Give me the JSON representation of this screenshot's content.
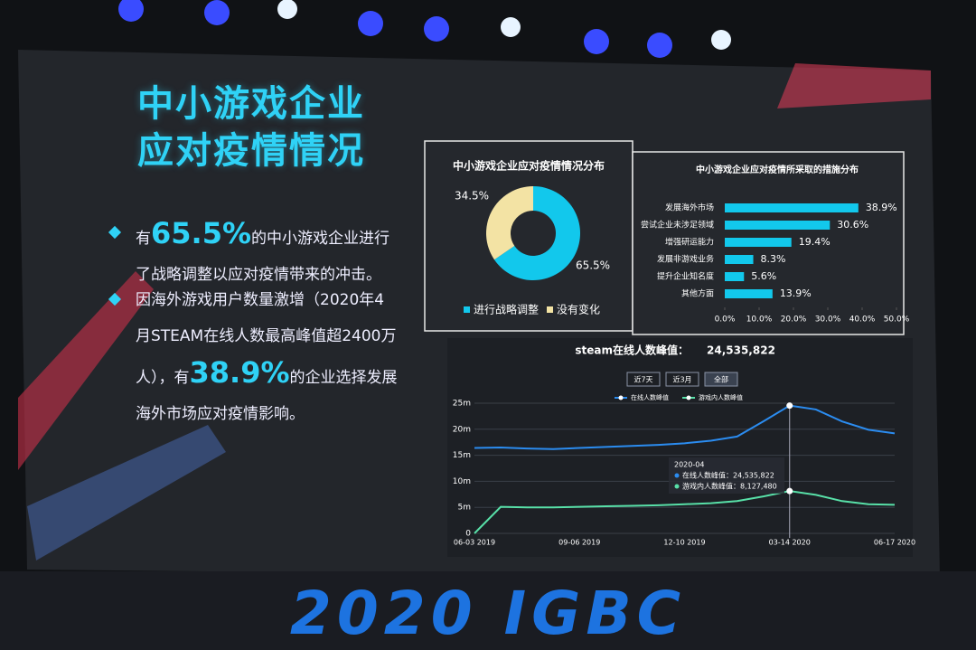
{
  "slide_title": [
    "中小游戏企业",
    "应对疫情情况"
  ],
  "bullets": [
    {
      "before": "有",
      "highlight": "65.5%",
      "after": "的中小游戏企业进行了战略调整以应对疫情带来的冲击。"
    },
    {
      "before": "因海外游戏用户数量激增（2020年4月STEAM在线人数最高峰值超2400万人），有",
      "highlight": "38.9%",
      "after": "的企业选择发展海外市场应对疫情影响。"
    }
  ],
  "banner": "2020 IGBC",
  "chart_data": [
    {
      "type": "pie",
      "title": "中小游戏企业应对疫情情况分布",
      "categories": [
        "进行战略调整",
        "没有变化"
      ],
      "values": [
        65.5,
        34.5
      ],
      "value_labels": [
        "65.5%",
        "34.5%"
      ],
      "colors": [
        "#12c8ec",
        "#f3e3a4"
      ]
    },
    {
      "type": "hbar",
      "title": "中小游戏企业应对疫情所采取的措施分布",
      "categories": [
        "发展海外市场",
        "尝试企业未涉足领域",
        "增强研运能力",
        "发展非游戏业务",
        "提升企业知名度",
        "其他方面"
      ],
      "values": [
        38.9,
        30.6,
        19.4,
        8.3,
        5.6,
        13.9
      ],
      "value_labels": [
        "38.9%",
        "30.6%",
        "19.4%",
        "8.3%",
        "5.6%",
        "13.9%"
      ],
      "color": "#12c8ec",
      "xlim": [
        0,
        50
      ],
      "xticks": [
        {
          "value": 0,
          "label": "0.0%"
        },
        {
          "value": 10,
          "label": "10.0%"
        },
        {
          "value": 20,
          "label": "20.0%"
        },
        {
          "value": 30,
          "label": "30.0%"
        },
        {
          "value": 40,
          "label": "40.0%"
        },
        {
          "value": 50,
          "label": "50.0%"
        }
      ]
    },
    {
      "type": "line",
      "title": "steam在线人数峰值：",
      "annotation": "24,535,822",
      "buttons": [
        "近7天",
        "近3月",
        "全部"
      ],
      "categories": [
        "06-03 2019",
        null,
        null,
        null,
        "09-06 2019",
        null,
        null,
        null,
        "12-10 2019",
        null,
        null,
        null,
        "03-14 2020",
        null,
        null,
        null,
        "06-17 2020"
      ],
      "series": [
        {
          "name": "在线人数峰值",
          "color": "#2b8cf0",
          "values": [
            16400000,
            16500000,
            16300000,
            16200000,
            16400000,
            16600000,
            16800000,
            17000000,
            17300000,
            17800000,
            18600000,
            21500000,
            24535822,
            23800000,
            21500000,
            19900000,
            19200000
          ]
        },
        {
          "name": "游戏内人数峰值",
          "color": "#58e0a8",
          "values": [
            0,
            5100000,
            5000000,
            5000000,
            5100000,
            5200000,
            5300000,
            5400000,
            5600000,
            5800000,
            6200000,
            7100000,
            8127480,
            7400000,
            6200000,
            5600000,
            5500000
          ]
        }
      ],
      "tooltip": {
        "title": "2020-04",
        "lines": [
          "在线人数峰值：24,535,822",
          "游戏内人数峰值：8,127,480"
        ]
      },
      "ylim": [
        0,
        25000000
      ],
      "yticks": [
        0,
        {
          "value": 5000000,
          "label": "5m"
        },
        {
          "value": 10000000,
          "label": "10m"
        },
        {
          "value": 15000000,
          "label": "15m"
        },
        {
          "value": 20000000,
          "label": "20m"
        },
        {
          "value": 25000000,
          "label": "25m"
        }
      ],
      "grid": true
    }
  ]
}
